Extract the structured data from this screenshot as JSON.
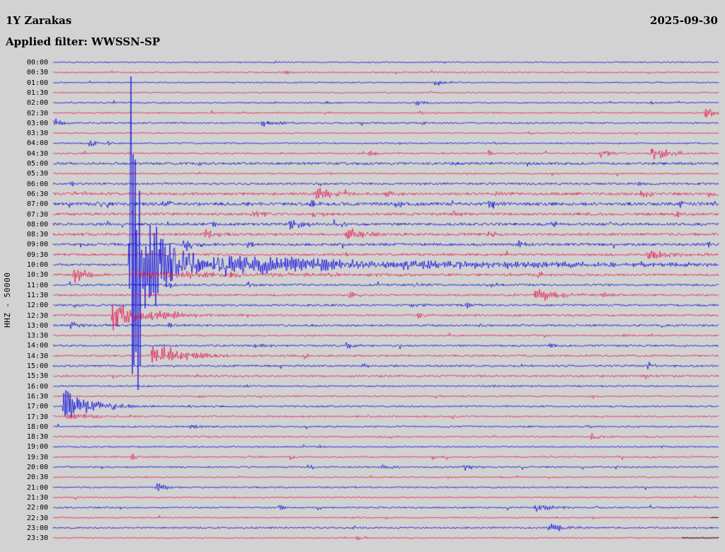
{
  "header": {
    "station": "1Y Zarakas",
    "date": "2025-09-30",
    "filter_label": "Applied filter: WWSSN-SP",
    "ylabel": "HHZ - 50000"
  },
  "colors": {
    "background": "#d2d2d2",
    "blue": "#0000dd",
    "red": "#e8144a",
    "black": "#000000",
    "text": "#000000"
  },
  "chart_data": {
    "type": "line",
    "subtype": "helicorder-seismogram",
    "title": "1Y Zarakas",
    "date": "2025-09-30",
    "applied_filter": "WWSSN-SP",
    "channel_scale": "HHZ - 50000",
    "minutes_per_row": 30,
    "trace_color_cycle": [
      "blue",
      "red"
    ],
    "x_axis": "time within row, fraction of 30 minutes (0-1)",
    "event_format": "[position_fraction, amplitude_px, decay_fraction]",
    "main_event": {
      "row": "10:00",
      "position": 0.116,
      "amplitude": 270,
      "note": "large earthquake, clipped trace crosses neighbouring rows"
    },
    "rows": [
      {
        "time": "00:00",
        "color": "blue",
        "noise": 0.9,
        "ev": [
          [
            0.33,
            2.5,
            0.008
          ]
        ]
      },
      {
        "time": "00:30",
        "color": "red",
        "noise": 0.9,
        "ev": [
          [
            0.345,
            4,
            0.01
          ],
          [
            0.62,
            2.5,
            0.008
          ]
        ]
      },
      {
        "time": "01:00",
        "color": "blue",
        "noise": 0.9,
        "ev": [
          [
            0.574,
            5,
            0.015
          ],
          [
            0.27,
            2,
            0.008
          ]
        ]
      },
      {
        "time": "01:30",
        "color": "red",
        "noise": 0.9,
        "ev": [
          [
            0.74,
            2,
            0.008
          ]
        ]
      },
      {
        "time": "02:00",
        "color": "blue",
        "noise": 1.0,
        "ev": [
          [
            0.41,
            3,
            0.01
          ],
          [
            0.545,
            4,
            0.012
          ],
          [
            0.9,
            2.5,
            0.008
          ]
        ]
      },
      {
        "time": "02:30",
        "color": "red",
        "noise": 1.0,
        "ev": [
          [
            0.548,
            4,
            0.012
          ],
          [
            0.98,
            8,
            0.02
          ],
          [
            0.41,
            3,
            0.01
          ]
        ]
      },
      {
        "time": "03:00",
        "color": "blue",
        "noise": 1.1,
        "ev": [
          [
            0.0,
            6,
            0.02
          ],
          [
            0.314,
            7,
            0.02
          ],
          [
            0.55,
            3,
            0.01
          ]
        ]
      },
      {
        "time": "03:30",
        "color": "red",
        "noise": 0.9,
        "ev": [
          [
            0.713,
            3,
            0.01
          ],
          [
            0.32,
            2,
            0.008
          ]
        ]
      },
      {
        "time": "04:00",
        "color": "blue",
        "noise": 1.0,
        "ev": [
          [
            0.055,
            7,
            0.012
          ],
          [
            0.082,
            5,
            0.012
          ],
          [
            0.52,
            2.5,
            0.008
          ]
        ]
      },
      {
        "time": "04:30",
        "color": "red",
        "noise": 1.1,
        "ev": [
          [
            0.473,
            5,
            0.015
          ],
          [
            0.654,
            4,
            0.012
          ],
          [
            0.822,
            7,
            0.018
          ],
          [
            0.899,
            10,
            0.03
          ]
        ]
      },
      {
        "time": "05:00",
        "color": "blue",
        "noise": 1.7,
        "ev": [
          [
            0.22,
            3,
            0.01
          ],
          [
            0.6,
            2.5,
            0.01
          ]
        ]
      },
      {
        "time": "05:30",
        "color": "red",
        "noise": 1.0,
        "ev": [
          [
            0.617,
            3,
            0.01
          ],
          [
            0.75,
            2.5,
            0.008
          ]
        ]
      },
      {
        "time": "06:00",
        "color": "blue",
        "noise": 1.4,
        "ev": [
          [
            0.027,
            4,
            0.012
          ],
          [
            0.4,
            3,
            0.01
          ],
          [
            0.55,
            3,
            0.01
          ],
          [
            0.88,
            3,
            0.01
          ]
        ]
      },
      {
        "time": "06:30",
        "color": "red",
        "noise": 1.8,
        "ev": [
          [
            0.032,
            6,
            0.015
          ],
          [
            0.396,
            9,
            0.025
          ],
          [
            0.5,
            5,
            0.015
          ],
          [
            0.665,
            5,
            0.015
          ],
          [
            0.883,
            6,
            0.015
          ],
          [
            0.984,
            5,
            0.012
          ]
        ]
      },
      {
        "time": "07:00",
        "color": "blue",
        "noise": 2.2,
        "ev": [
          [
            0.165,
            6,
            0.015
          ],
          [
            0.293,
            5,
            0.012
          ],
          [
            0.388,
            6,
            0.015
          ],
          [
            0.516,
            6,
            0.015
          ],
          [
            0.654,
            6,
            0.015
          ],
          [
            0.941,
            4,
            0.012
          ]
        ]
      },
      {
        "time": "07:30",
        "color": "red",
        "noise": 1.8,
        "ev": [
          [
            0.298,
            8,
            0.02
          ],
          [
            0.388,
            6,
            0.015
          ],
          [
            0.6,
            4,
            0.012
          ],
          [
            0.935,
            5,
            0.015
          ]
        ]
      },
      {
        "time": "08:00",
        "color": "blue",
        "noise": 1.8,
        "ev": [
          [
            0.356,
            10,
            0.022
          ],
          [
            0.42,
            6,
            0.015
          ],
          [
            0.24,
            4,
            0.01
          ],
          [
            0.75,
            4,
            0.012
          ]
        ]
      },
      {
        "time": "08:30",
        "color": "red",
        "noise": 1.8,
        "ev": [
          [
            0.229,
            8,
            0.018
          ],
          [
            0.441,
            10,
            0.025
          ],
          [
            0.654,
            5,
            0.015
          ],
          [
            0.09,
            4,
            0.01
          ]
        ]
      },
      {
        "time": "09:00",
        "color": "blue",
        "noise": 1.8,
        "ev": [
          [
            0.197,
            9,
            0.022
          ],
          [
            0.293,
            5,
            0.012
          ],
          [
            0.633,
            4,
            0.012
          ],
          [
            0.697,
            5,
            0.012
          ],
          [
            0.985,
            4,
            0.012
          ]
        ]
      },
      {
        "time": "09:30",
        "color": "red",
        "noise": 1.6,
        "ev": [
          [
            0.894,
            10,
            0.03
          ],
          [
            0.44,
            4,
            0.012
          ],
          [
            0.2,
            3,
            0.01
          ]
        ]
      },
      {
        "time": "10:00",
        "color": "blue",
        "noise": 1.4,
        "ev": [
          [
            0.116,
            270,
            0.014
          ],
          [
            0.125,
            90,
            0.045
          ],
          [
            0.15,
            30,
            0.1
          ],
          [
            0.25,
            10,
            0.45
          ],
          [
            0.463,
            8,
            0.018
          ]
        ]
      },
      {
        "time": "10:30",
        "color": "red",
        "noise": 1.4,
        "ev": [
          [
            0.032,
            11,
            0.022
          ],
          [
            0.12,
            5,
            0.3
          ],
          [
            0.729,
            5,
            0.015
          ],
          [
            0.25,
            4,
            0.012
          ]
        ]
      },
      {
        "time": "11:00",
        "color": "blue",
        "noise": 1.4,
        "ev": [
          [
            0.175,
            5,
            0.012
          ],
          [
            0.293,
            4,
            0.012
          ],
          [
            0.543,
            5,
            0.015
          ],
          [
            0.654,
            4,
            0.012
          ]
        ]
      },
      {
        "time": "11:30",
        "color": "red",
        "noise": 1.4,
        "ev": [
          [
            0.445,
            6,
            0.015
          ],
          [
            0.723,
            11,
            0.035
          ],
          [
            0.824,
            4,
            0.012
          ]
        ]
      },
      {
        "time": "12:00",
        "color": "blue",
        "noise": 1.4,
        "ev": [
          [
            0.537,
            5,
            0.015
          ],
          [
            0.622,
            4,
            0.012
          ],
          [
            0.032,
            4,
            0.01
          ]
        ]
      },
      {
        "time": "12:30",
        "color": "red",
        "noise": 1.4,
        "ev": [
          [
            0.09,
            22,
            0.035
          ],
          [
            0.144,
            10,
            0.04
          ],
          [
            0.548,
            4,
            0.012
          ]
        ]
      },
      {
        "time": "13:00",
        "color": "blue",
        "noise": 1.4,
        "ev": [
          [
            0.027,
            6,
            0.015
          ],
          [
            0.175,
            4,
            0.012
          ],
          [
            0.64,
            3,
            0.01
          ]
        ]
      },
      {
        "time": "13:30",
        "color": "red",
        "noise": 1.1,
        "ev": [
          [
            0.856,
            3,
            0.01
          ],
          [
            0.3,
            2.5,
            0.008
          ]
        ]
      },
      {
        "time": "14:00",
        "color": "blue",
        "noise": 1.3,
        "ev": [
          [
            0.303,
            5,
            0.015
          ],
          [
            0.441,
            5,
            0.015
          ],
          [
            0.745,
            4,
            0.012
          ]
        ]
      },
      {
        "time": "14:30",
        "color": "red",
        "noise": 1.3,
        "ev": [
          [
            0.149,
            18,
            0.045
          ],
          [
            0.378,
            4,
            0.012
          ]
        ]
      },
      {
        "time": "15:00",
        "color": "blue",
        "noise": 1.3,
        "ev": [
          [
            0.463,
            4,
            0.012
          ],
          [
            0.894,
            5,
            0.015
          ]
        ]
      },
      {
        "time": "15:30",
        "color": "red",
        "noise": 1.3,
        "ev": [
          [
            0.888,
            4,
            0.012
          ],
          [
            0.218,
            3,
            0.01
          ],
          [
            0.64,
            3,
            0.01
          ]
        ]
      },
      {
        "time": "16:00",
        "color": "blue",
        "noise": 1.1,
        "ev": [
          [
            0.282,
            3,
            0.01
          ],
          [
            0.654,
            3,
            0.01
          ]
        ]
      },
      {
        "time": "16:30",
        "color": "red",
        "noise": 1.1,
        "ev": [
          [
            0.809,
            4,
            0.012
          ],
          [
            0.218,
            3,
            0.01
          ]
        ]
      },
      {
        "time": "17:00",
        "color": "blue",
        "noise": 1.2,
        "ev": [
          [
            0.016,
            22,
            0.04
          ],
          [
            0.207,
            3,
            0.01
          ]
        ]
      },
      {
        "time": "17:30",
        "color": "red",
        "noise": 1.1,
        "ev": [
          [
            0.021,
            5,
            0.05
          ],
          [
            0.6,
            3,
            0.01
          ]
        ]
      },
      {
        "time": "18:00",
        "color": "blue",
        "noise": 1.1,
        "ev": [
          [
            0.207,
            5,
            0.012
          ],
          [
            0.803,
            3,
            0.01
          ]
        ]
      },
      {
        "time": "18:30",
        "color": "red",
        "noise": 1.1,
        "ev": [
          [
            0.809,
            5,
            0.015
          ],
          [
            0.5,
            3,
            0.01
          ]
        ]
      },
      {
        "time": "19:00",
        "color": "blue",
        "noise": 1.0,
        "ev": [
          [
            0.915,
            3,
            0.01
          ],
          [
            0.4,
            2.5,
            0.008
          ]
        ]
      },
      {
        "time": "19:30",
        "color": "red",
        "noise": 1.1,
        "ev": [
          [
            0.117,
            6,
            0.012
          ],
          [
            0.356,
            3,
            0.01
          ],
          [
            0.57,
            3,
            0.01
          ]
        ]
      },
      {
        "time": "20:00",
        "color": "blue",
        "noise": 1.1,
        "ev": [
          [
            0.495,
            6,
            0.015
          ],
          [
            0.617,
            5,
            0.015
          ],
          [
            0.388,
            3,
            0.01
          ]
        ]
      },
      {
        "time": "20:30",
        "color": "red",
        "noise": 0.9,
        "ev": [
          [
            0.67,
            2.5,
            0.008
          ]
        ]
      },
      {
        "time": "21:00",
        "color": "blue",
        "noise": 1.0,
        "ev": [
          [
            0.156,
            7,
            0.015
          ]
        ]
      },
      {
        "time": "21:30",
        "color": "red",
        "noise": 0.9,
        "ev": [
          [
            0.27,
            2.5,
            0.008
          ]
        ]
      },
      {
        "time": "22:00",
        "color": "blue",
        "noise": 1.1,
        "ev": [
          [
            0.34,
            5,
            0.012
          ],
          [
            0.723,
            7,
            0.025
          ]
        ]
      },
      {
        "time": "22:30",
        "color": "red",
        "noise": 0.9,
        "ev": [
          [
            0.5,
            2,
            0.008
          ]
        ],
        "tail": 0.012
      },
      {
        "time": "23:00",
        "color": "blue",
        "noise": 1.1,
        "ev": [
          [
            0.745,
            7,
            0.025
          ],
          [
            0.452,
            3,
            0.01
          ]
        ]
      },
      {
        "time": "23:30",
        "color": "red",
        "noise": 0.9,
        "ev": [
          [
            0.457,
            4,
            0.01
          ]
        ],
        "tail": 0.055
      }
    ]
  }
}
